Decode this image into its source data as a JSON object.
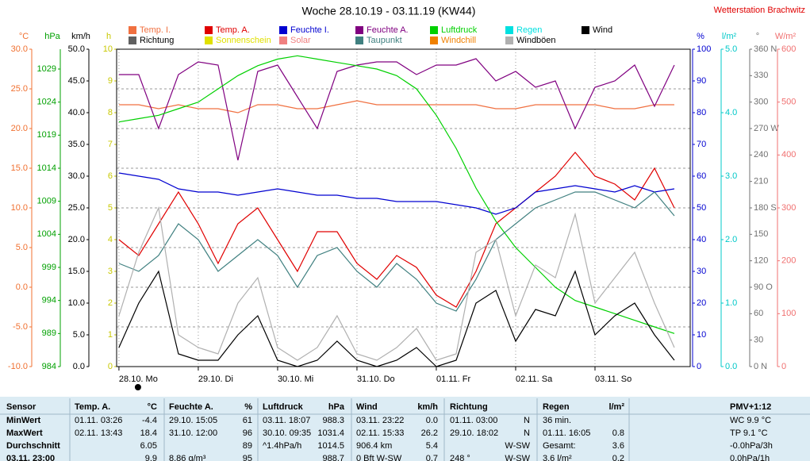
{
  "chart_data": {
    "type": "line",
    "title": "Woche 28.10.19 - 03.11.19 (KW44)",
    "station": "Wetterstation Brachwitz",
    "ylabel": "°C",
    "ycolor": "#f07030",
    "ylim": [
      -10,
      30
    ],
    "yticks": [
      {
        "value": -10,
        "label": "-10.0"
      },
      {
        "value": -5,
        "label": "-5.0"
      },
      {
        "value": 0,
        "label": "0.0"
      },
      {
        "value": 5,
        "label": "5.0"
      },
      {
        "value": 10,
        "label": "10.0"
      },
      {
        "value": 15,
        "label": "15.0"
      },
      {
        "value": 20,
        "label": "20.0"
      },
      {
        "value": 25,
        "label": "25.0"
      },
      {
        "value": 30,
        "label": "30.0"
      }
    ],
    "grid": true,
    "axes": {
      "y2": {
        "label": "hPa",
        "color": "#00a000",
        "side": "left",
        "lim": [
          984,
          1032
        ],
        "ticks": [
          984,
          989,
          994,
          999,
          1004,
          1009,
          1014,
          1019,
          1024,
          1029
        ]
      },
      "y3": {
        "label": "km/h",
        "color": "#000000",
        "side": "left",
        "lim": [
          0,
          50
        ],
        "ticks": [
          {
            "value": 0,
            "label": "0.0"
          },
          {
            "value": 5,
            "label": "5.0"
          },
          {
            "value": 10,
            "label": "10.0"
          },
          {
            "value": 15,
            "label": "15.0"
          },
          {
            "value": 20,
            "label": "20.0"
          },
          {
            "value": 25,
            "label": "25.0"
          },
          {
            "value": 30,
            "label": "30.0"
          },
          {
            "value": 35,
            "label": "35.0"
          },
          {
            "value": 40,
            "label": "40.0"
          },
          {
            "value": 45,
            "label": "45.0"
          },
          {
            "value": 50,
            "label": "50.0"
          }
        ]
      },
      "y4": {
        "label": "h",
        "color": "#c8c800",
        "side": "left",
        "lim": [
          0,
          10
        ],
        "ticks": [
          0,
          1,
          2,
          3,
          4,
          5,
          6,
          7,
          8,
          9,
          10
        ]
      },
      "y5": {
        "label": "%",
        "color": "#0000d0",
        "side": "right",
        "lim": [
          0,
          100
        ],
        "ticks": [
          0,
          10,
          20,
          30,
          40,
          50,
          60,
          70,
          80,
          90,
          100
        ]
      },
      "y6": {
        "label": "l/m²",
        "color": "#00c8c8",
        "side": "right",
        "lim": [
          0,
          5
        ],
        "ticks": [
          {
            "value": 0,
            "label": "0.0"
          },
          {
            "value": 1,
            "label": "1.0"
          },
          {
            "value": 2,
            "label": "2.0"
          },
          {
            "value": 3,
            "label": "3.0"
          },
          {
            "value": 4,
            "label": "4.0"
          },
          {
            "value": 5,
            "label": "5.0"
          }
        ]
      },
      "y7": {
        "label": "°",
        "color": "#707070",
        "side": "right",
        "lim": [
          0,
          360
        ],
        "ticks": [
          {
            "value": 0,
            "label": "0 N"
          },
          30,
          60,
          {
            "value": 90,
            "label": "90 O"
          },
          120,
          150,
          {
            "value": 180,
            "label": "180 S"
          },
          210,
          240,
          {
            "value": 270,
            "label": "270 W"
          },
          300,
          330,
          {
            "value": 360,
            "label": "360 N"
          }
        ]
      },
      "y8": {
        "label": "W/m²",
        "color": "#f07070",
        "side": "right",
        "lim": [
          0,
          600
        ],
        "ticks": [
          0,
          100,
          200,
          300,
          400,
          500,
          600
        ]
      }
    },
    "xlim": [
      -0.7,
      172.8
    ],
    "xticks": [
      {
        "value": 0,
        "label": "28.10. Mo"
      },
      {
        "value": 24,
        "label": "29.10. Di"
      },
      {
        "value": 48,
        "label": "30.10. Mi"
      },
      {
        "value": 72,
        "label": "31.10. Do"
      },
      {
        "value": 96,
        "label": "01.11. Fr"
      },
      {
        "value": 120,
        "label": "02.11. Sa"
      },
      {
        "value": 144,
        "label": "03.11. So"
      }
    ],
    "x": [
      0,
      6,
      12,
      18,
      24,
      30,
      36,
      42,
      48,
      54,
      60,
      66,
      72,
      78,
      84,
      90,
      96,
      102,
      108,
      114,
      120,
      126,
      132,
      138,
      144,
      150,
      156,
      162,
      168
    ],
    "series": [
      {
        "name": "Temp. I.",
        "color": "#f07040",
        "axis": "y",
        "values": [
          23,
          23,
          22.5,
          23,
          22.5,
          22.5,
          22,
          23,
          23,
          22.5,
          22.5,
          23,
          23.5,
          23,
          23,
          23,
          23,
          23,
          23,
          22.5,
          22.5,
          23,
          23,
          23,
          23,
          22.5,
          22.5,
          23,
          23
        ]
      },
      {
        "name": "Temp. A.",
        "color": "#e00000",
        "axis": "y",
        "values": [
          6,
          4,
          8,
          12,
          8,
          3,
          8,
          10,
          6,
          2,
          7,
          7,
          3,
          1,
          4,
          2.5,
          -1,
          -2.5,
          2,
          8,
          10,
          12,
          14,
          17,
          14,
          13,
          11,
          15,
          10
        ]
      },
      {
        "name": "Feuchte I.",
        "color": "#0000d0",
        "axis": "y5",
        "values": [
          61,
          60,
          59,
          56,
          55,
          55,
          54,
          55,
          56,
          55,
          54,
          54,
          53,
          53,
          52,
          52,
          52,
          51,
          50,
          48,
          50,
          55,
          56,
          57,
          56,
          55,
          57,
          55,
          56
        ]
      },
      {
        "name": "Feuchte A.",
        "color": "#800080",
        "axis": "y5",
        "values": [
          92,
          92,
          75,
          92,
          96,
          95,
          65,
          93,
          95,
          85,
          75,
          93,
          95,
          96,
          96,
          92,
          95,
          95,
          97,
          90,
          93,
          88,
          90,
          75,
          88,
          90,
          95,
          82,
          95
        ]
      },
      {
        "name": "Luftdruck",
        "color": "#00d000",
        "axis": "y2",
        "values": [
          1021,
          1021.5,
          1022,
          1023,
          1024,
          1026,
          1028,
          1029.5,
          1030.5,
          1031,
          1030.5,
          1030,
          1029.5,
          1029,
          1028,
          1026,
          1022,
          1017,
          1011,
          1006,
          1002,
          999,
          996,
          994,
          993,
          992,
          991,
          990,
          989
        ]
      },
      {
        "name": "Regen",
        "color": "#00e0e0"
      },
      {
        "name": "Wind",
        "color": "#000000",
        "axis": "y3",
        "values": [
          3,
          10,
          15,
          2,
          1,
          1,
          5,
          8,
          1,
          0,
          1,
          4,
          1,
          0,
          1,
          3,
          0,
          1,
          10,
          12,
          4,
          9,
          8,
          15,
          5,
          8,
          10,
          5,
          1
        ]
      },
      {
        "name": "Richtung",
        "color": "#606060"
      },
      {
        "name": "Sonnenschein",
        "color": "#e0e000"
      },
      {
        "name": "Solar",
        "color": "#f08080"
      },
      {
        "name": "Taupunkt",
        "color": "#408080",
        "axis": "y",
        "values": [
          3,
          2,
          4,
          8,
          6,
          2,
          4,
          6,
          4,
          0,
          4,
          5,
          2,
          0,
          3,
          1,
          -2,
          -3,
          1,
          6,
          8,
          10,
          11,
          12,
          12,
          11,
          10,
          12,
          9
        ]
      },
      {
        "name": "Windchill",
        "color": "#f08000"
      },
      {
        "name": "Windböen",
        "color": "#b0b0b0",
        "axis": "y3",
        "values": [
          8,
          18,
          25,
          5,
          3,
          2,
          10,
          14,
          3,
          1,
          3,
          8,
          2,
          1,
          3,
          6,
          1,
          2,
          18,
          20,
          8,
          16,
          14,
          24,
          10,
          14,
          18,
          10,
          3
        ]
      }
    ]
  },
  "table": {
    "header": [
      "Sensor",
      "Temp. A.",
      "°C",
      "Feuchte A.",
      "%",
      "Luftdruck",
      "hPa",
      "Wind",
      "km/h",
      "Richtung",
      null,
      "Regen",
      "l/m²",
      "PMV+1:12"
    ],
    "rows": [
      [
        "MinWert",
        "01.11. 03:26",
        "-4.4",
        "29.10. 15:05",
        "61",
        "03.11. 18:07",
        "988.3",
        "03.11. 23:22",
        "0.0",
        "01.11. 03:00",
        "N",
        "36 min.",
        null,
        "WC 9.9 °C"
      ],
      [
        "MaxWert",
        "02.11. 13:43",
        "18.4",
        "31.10. 12:00",
        "96",
        "30.10. 09:35",
        "1031.4",
        "02.11. 15:33",
        "26.2",
        "29.10. 18:02",
        "N",
        "01.11. 16:05",
        "0.8",
        "TP 9.1 °C"
      ],
      [
        "Durchschnitt",
        null,
        "6.05",
        null,
        "89",
        "^1.4hPa/h",
        "1014.5",
        "906.4 km",
        "5.4",
        null,
        "W-SW",
        "Gesamt:",
        "3.6",
        "-0.0hPa/3h"
      ],
      [
        "03.11. 23:00",
        null,
        "9.9",
        "8.86 g/m³",
        "95",
        null,
        "988.7",
        "0 Bft W-SW",
        "0.7",
        "248 °",
        "W-SW",
        "3.6 l/m²",
        "0.2",
        "0.0hPa/1h"
      ]
    ]
  }
}
